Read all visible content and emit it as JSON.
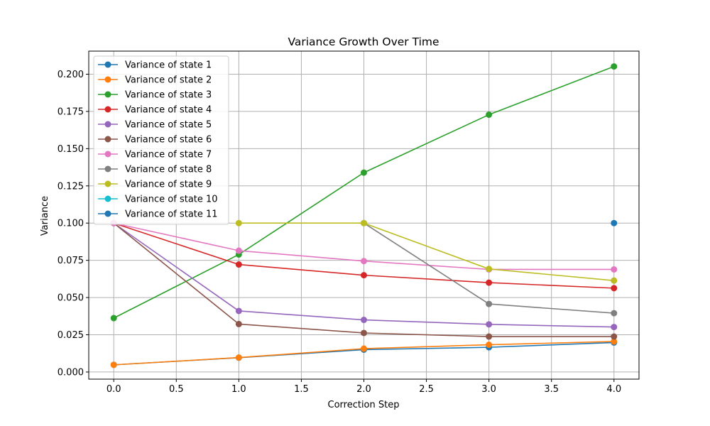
{
  "chart_data": {
    "type": "line",
    "title": "Variance Growth Over Time",
    "xlabel": "Correction Step",
    "ylabel": "Variance",
    "xlim": [
      -0.2,
      4.2
    ],
    "ylim": [
      -0.0048,
      0.2155
    ],
    "xticks": [
      0.0,
      0.5,
      1.0,
      1.5,
      2.0,
      2.5,
      3.0,
      3.5,
      4.0
    ],
    "xtick_labels": [
      "0.0",
      "0.5",
      "1.0",
      "1.5",
      "2.0",
      "2.5",
      "3.0",
      "3.5",
      "4.0"
    ],
    "yticks": [
      0.0,
      0.025,
      0.05,
      0.075,
      0.1,
      0.125,
      0.15,
      0.175,
      0.2
    ],
    "ytick_labels": [
      "0.000",
      "0.025",
      "0.050",
      "0.075",
      "0.100",
      "0.125",
      "0.150",
      "0.175",
      "0.200"
    ],
    "grid": true,
    "legend_position": "top-left",
    "series": [
      {
        "name": "Variance of state 1",
        "color": "#1f77b4",
        "x": [
          0,
          1,
          2,
          3,
          4
        ],
        "values": [
          0.0048,
          0.0096,
          0.015,
          0.0166,
          0.0198
        ]
      },
      {
        "name": "Variance of state 2",
        "color": "#ff7f0e",
        "x": [
          0,
          1,
          2,
          3,
          4
        ],
        "values": [
          0.0048,
          0.0097,
          0.0157,
          0.0183,
          0.0205
        ]
      },
      {
        "name": "Variance of state 3",
        "color": "#2ca02c",
        "x": [
          0,
          1,
          2,
          3,
          4
        ],
        "values": [
          0.0362,
          0.0789,
          0.1339,
          0.1728,
          0.2052
        ]
      },
      {
        "name": "Variance of state 4",
        "color": "#d62728",
        "x": [
          0,
          1,
          2,
          3,
          4
        ],
        "values": [
          0.1,
          0.0722,
          0.065,
          0.06,
          0.0563
        ]
      },
      {
        "name": "Variance of state 5",
        "color": "#9467bd",
        "x": [
          0,
          1,
          2,
          3,
          4
        ],
        "values": [
          0.1,
          0.041,
          0.035,
          0.032,
          0.0302
        ]
      },
      {
        "name": "Variance of state 6",
        "color": "#8c564b",
        "x": [
          0,
          1,
          2,
          3,
          4
        ],
        "values": [
          0.1,
          0.0322,
          0.0262,
          0.0238,
          0.0238
        ]
      },
      {
        "name": "Variance of state 7",
        "color": "#e377c2",
        "x": [
          0,
          1,
          2,
          3,
          4
        ],
        "values": [
          0.1,
          0.0815,
          0.0745,
          0.0689,
          0.0689
        ]
      },
      {
        "name": "Variance of state 8",
        "color": "#7f7f7f",
        "x": [
          2,
          3,
          4
        ],
        "values": [
          0.1,
          0.0457,
          0.0395
        ]
      },
      {
        "name": "Variance of state 9",
        "color": "#bcbd22",
        "x": [
          1,
          2,
          3,
          4
        ],
        "values": [
          0.1,
          0.1,
          0.0692,
          0.0614
        ]
      },
      {
        "name": "Variance of state 10",
        "color": "#17becf",
        "x": [],
        "values": []
      },
      {
        "name": "Variance of state 11",
        "color": "#1f77b4",
        "x": [
          4
        ],
        "values": [
          0.1
        ]
      }
    ]
  }
}
